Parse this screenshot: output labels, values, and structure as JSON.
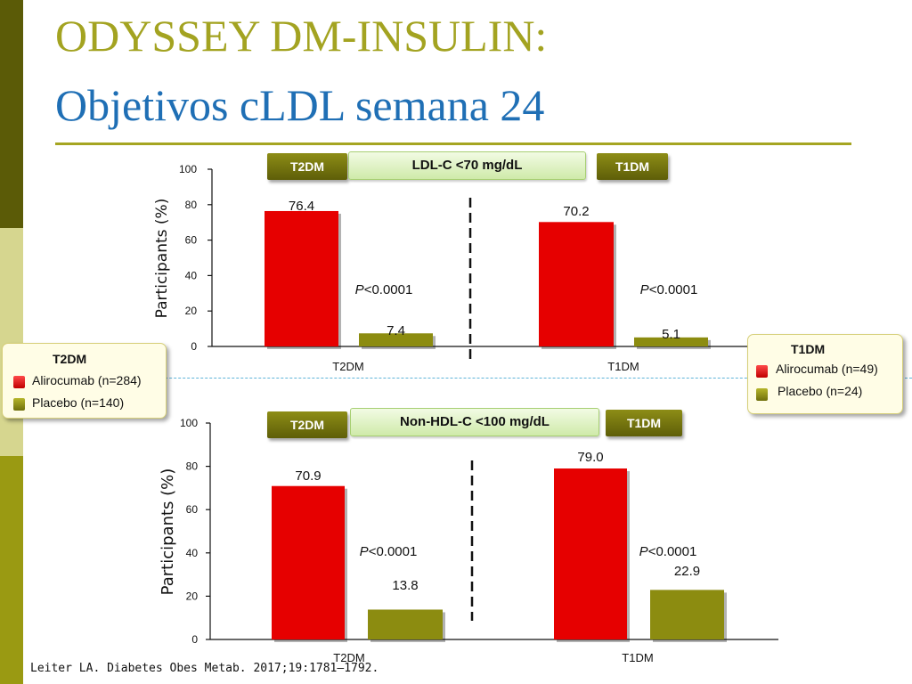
{
  "title_line1": "ODYSSEY DM-INSULIN:",
  "title_line2": "Objetivos cLDL semana 24",
  "citation": "Leiter LA. Diabetes Obes Metab. 2017;19:1781–1792.",
  "colors": {
    "alirocumab": "#e60000",
    "placebo": "#8c8c10",
    "title_line1": "#a3a321",
    "title_line2": "#1f6fb5",
    "divider": "#5fb4d9"
  },
  "legend_t2dm": {
    "title": "T2DM",
    "alirocumab": "Alirocumab (n=284)",
    "placebo": "Placebo (n=140)"
  },
  "legend_t1dm": {
    "title": "T1DM",
    "alirocumab": "Alirocumab (n=49)",
    "placebo": "Placebo (n=24)"
  },
  "chart_data": [
    {
      "type": "bar",
      "title": "LDL-C <70 mg/dL",
      "group_tags": [
        "T2DM",
        "T1DM"
      ],
      "categories": [
        "T2DM",
        "T1DM"
      ],
      "series": [
        {
          "name": "Alirocumab",
          "values": [
            76.4,
            70.2
          ]
        },
        {
          "name": "Placebo",
          "values": [
            7.4,
            5.1
          ]
        }
      ],
      "value_labels": [
        [
          "76.4",
          "70.2"
        ],
        [
          "7.4",
          "5.1"
        ]
      ],
      "p_values": [
        "P<0.0001",
        "P<0.0001"
      ],
      "ylabel": "Participants (%)",
      "ylim": [
        0,
        100
      ],
      "yticks": [
        0,
        20,
        40,
        60,
        80,
        100
      ],
      "grid": false
    },
    {
      "type": "bar",
      "title": "Non-HDL-C <100 mg/dL",
      "group_tags": [
        "T2DM",
        "T1DM"
      ],
      "categories": [
        "T2DM",
        "T1DM"
      ],
      "series": [
        {
          "name": "Alirocumab",
          "values": [
            70.9,
            79.0
          ]
        },
        {
          "name": "Placebo",
          "values": [
            13.8,
            22.9
          ]
        }
      ],
      "value_labels": [
        [
          "70.9",
          "79.0"
        ],
        [
          "13.8",
          "22.9"
        ]
      ],
      "p_values": [
        "P<0.0001",
        "P<0.0001"
      ],
      "ylabel": "Participants (%)",
      "ylim": [
        0,
        100
      ],
      "yticks": [
        0,
        20,
        40,
        60,
        80,
        100
      ],
      "grid": false
    }
  ]
}
